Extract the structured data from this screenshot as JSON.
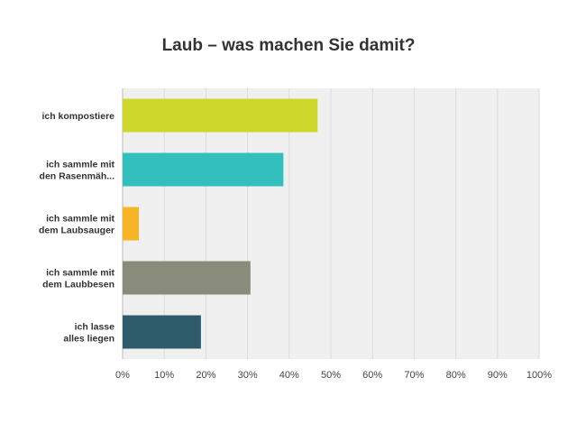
{
  "chart_data": {
    "type": "bar",
    "orientation": "horizontal",
    "title": "Laub – was machen Sie damit?",
    "categories": [
      [
        "ich kompostiere"
      ],
      [
        "ich sammle mit",
        "den Rasenmäh..."
      ],
      [
        "ich sammle mit",
        "dem Laubsauger"
      ],
      [
        "ich sammle mit",
        "dem Laubbesen"
      ],
      [
        "ich lasse",
        "alles liegen"
      ]
    ],
    "values": [
      46.8,
      38.6,
      3.9,
      30.7,
      18.8
    ],
    "colors": [
      "#cdd62b",
      "#33bfbe",
      "#f7b426",
      "#8a8c7b",
      "#2e5c6b"
    ],
    "xlim": [
      0,
      100
    ],
    "xticks": [
      "0%",
      "10%",
      "20%",
      "30%",
      "40%",
      "50%",
      "60%",
      "70%",
      "80%",
      "90%",
      "100%"
    ],
    "grid": true,
    "xlabel": "",
    "ylabel": ""
  }
}
